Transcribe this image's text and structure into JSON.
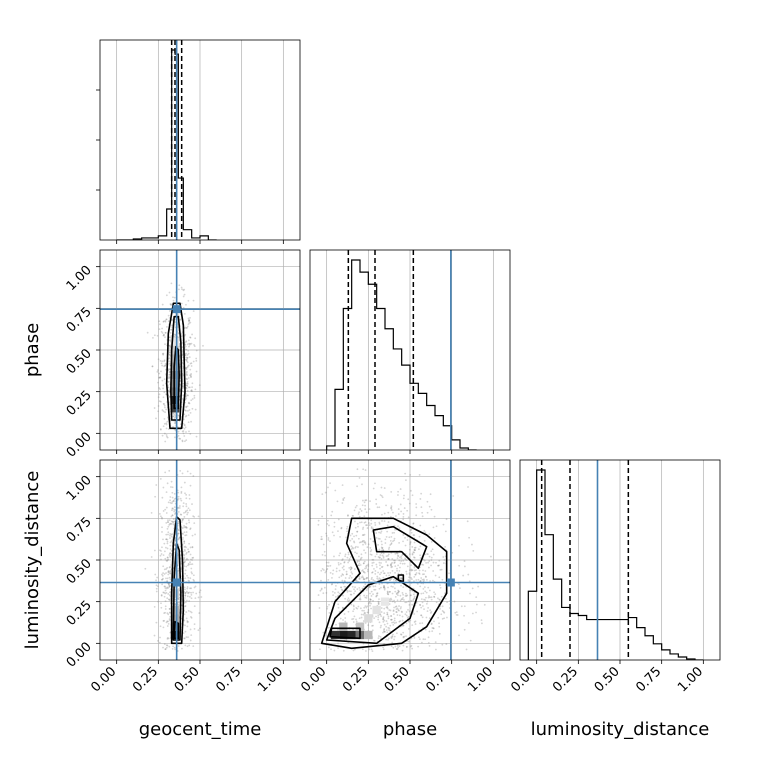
{
  "chart_data": {
    "type": "corner",
    "parameters": [
      "geocent_time",
      "phase",
      "luminosity_distance"
    ],
    "truth": [
      0.36,
      0.745,
      0.365
    ],
    "axis_range": [
      -0.1,
      1.1
    ],
    "ticks": [
      0.0,
      0.25,
      0.5,
      0.75,
      1.0
    ],
    "tick_labels": [
      "0.00",
      "0.25",
      "0.50",
      "0.75",
      "1.00"
    ],
    "quantiles": {
      "geocent_time": [
        0.33,
        0.35,
        0.39
      ],
      "phase": [
        0.13,
        0.29,
        0.52
      ],
      "luminosity_distance": [
        0.03,
        0.2,
        0.55
      ]
    },
    "histograms": {
      "geocent_time": {
        "bin_edges": [
          0.0,
          0.05,
          0.1,
          0.15,
          0.2,
          0.25,
          0.3,
          0.33,
          0.35,
          0.37,
          0.4,
          0.45,
          0.5,
          0.55,
          0.6
        ],
        "counts": [
          0.0,
          0.0,
          0.005,
          0.01,
          0.01,
          0.02,
          0.15,
          0.92,
          0.9,
          0.3,
          0.05,
          0.01,
          0.02,
          0.0
        ]
      },
      "phase": {
        "bin_edges": [
          0.0,
          0.05,
          0.1,
          0.15,
          0.2,
          0.25,
          0.3,
          0.35,
          0.4,
          0.45,
          0.5,
          0.55,
          0.6,
          0.65,
          0.7,
          0.75,
          0.8,
          0.85,
          0.9
        ],
        "counts": [
          0.02,
          0.3,
          0.7,
          0.94,
          0.88,
          0.82,
          0.7,
          0.6,
          0.5,
          0.42,
          0.33,
          0.28,
          0.22,
          0.17,
          0.12,
          0.05,
          0.01,
          0.0
        ]
      },
      "luminosity_distance": {
        "bin_edges": [
          -0.05,
          0.0,
          0.05,
          0.1,
          0.15,
          0.2,
          0.25,
          0.3,
          0.35,
          0.4,
          0.45,
          0.5,
          0.55,
          0.6,
          0.65,
          0.7,
          0.75,
          0.8,
          0.85,
          0.9,
          0.95,
          1.0
        ],
        "counts": [
          0.34,
          0.94,
          0.62,
          0.4,
          0.26,
          0.23,
          0.22,
          0.2,
          0.2,
          0.2,
          0.2,
          0.2,
          0.21,
          0.16,
          0.12,
          0.08,
          0.05,
          0.03,
          0.015,
          0.005,
          0.0
        ]
      }
    },
    "contours": {
      "phase_vs_geocent_time": [
        [
          [
            0.32,
            0.03
          ],
          [
            0.39,
            0.03
          ],
          [
            0.41,
            0.25
          ],
          [
            0.4,
            0.65
          ],
          [
            0.38,
            0.78
          ],
          [
            0.34,
            0.78
          ],
          [
            0.31,
            0.6
          ],
          [
            0.3,
            0.3
          ]
        ],
        [
          [
            0.33,
            0.08
          ],
          [
            0.38,
            0.08
          ],
          [
            0.39,
            0.3
          ],
          [
            0.385,
            0.55
          ],
          [
            0.37,
            0.7
          ],
          [
            0.345,
            0.7
          ],
          [
            0.33,
            0.5
          ],
          [
            0.325,
            0.25
          ]
        ],
        [
          [
            0.345,
            0.15
          ],
          [
            0.37,
            0.15
          ],
          [
            0.375,
            0.35
          ],
          [
            0.37,
            0.5
          ],
          [
            0.355,
            0.52
          ],
          [
            0.345,
            0.4
          ]
        ]
      ],
      "luminosity_distance_vs_geocent_time": [
        [
          [
            0.33,
            0.0
          ],
          [
            0.39,
            0.0
          ],
          [
            0.4,
            0.2
          ],
          [
            0.395,
            0.5
          ],
          [
            0.38,
            0.74
          ],
          [
            0.36,
            0.76
          ],
          [
            0.34,
            0.6
          ],
          [
            0.33,
            0.3
          ]
        ],
        [
          [
            0.34,
            0.02
          ],
          [
            0.38,
            0.02
          ],
          [
            0.385,
            0.3
          ],
          [
            0.375,
            0.56
          ],
          [
            0.36,
            0.6
          ],
          [
            0.345,
            0.4
          ]
        ],
        [
          [
            0.345,
            0.03
          ],
          [
            0.37,
            0.03
          ],
          [
            0.37,
            0.12
          ],
          [
            0.35,
            0.13
          ]
        ]
      ],
      "luminosity_distance_vs_phase": [
        [
          [
            -0.03,
            0.0
          ],
          [
            0.15,
            -0.03
          ],
          [
            0.45,
            0.0
          ],
          [
            0.6,
            0.1
          ],
          [
            0.72,
            0.3
          ],
          [
            0.72,
            0.55
          ],
          [
            0.6,
            0.65
          ],
          [
            0.4,
            0.75
          ],
          [
            0.15,
            0.75
          ],
          [
            0.12,
            0.6
          ],
          [
            0.2,
            0.42
          ],
          [
            0.05,
            0.25
          ]
        ],
        [
          [
            0.0,
            0.02
          ],
          [
            0.3,
            0.0
          ],
          [
            0.5,
            0.15
          ],
          [
            0.55,
            0.3
          ],
          [
            0.4,
            0.4
          ],
          [
            0.25,
            0.35
          ],
          [
            0.05,
            0.15
          ]
        ],
        [
          [
            0.3,
            0.55
          ],
          [
            0.45,
            0.55
          ],
          [
            0.55,
            0.45
          ],
          [
            0.6,
            0.58
          ],
          [
            0.4,
            0.7
          ],
          [
            0.28,
            0.68
          ]
        ],
        [
          [
            0.02,
            0.04
          ],
          [
            0.2,
            0.03
          ],
          [
            0.2,
            0.09
          ],
          [
            0.03,
            0.09
          ]
        ],
        [
          [
            0.43,
            0.41
          ],
          [
            0.46,
            0.41
          ],
          [
            0.46,
            0.37
          ],
          [
            0.43,
            0.38
          ]
        ]
      ]
    },
    "density_cells": {
      "phase_vs_geocent_time": [
        [
          0.35,
          0.15,
          0.8
        ],
        [
          0.35,
          0.2,
          0.95
        ],
        [
          0.35,
          0.25,
          0.6
        ],
        [
          0.35,
          0.3,
          0.5
        ],
        [
          0.35,
          0.35,
          0.55
        ],
        [
          0.35,
          0.4,
          0.4
        ],
        [
          0.35,
          0.45,
          0.3
        ],
        [
          0.35,
          0.5,
          0.2
        ],
        [
          0.35,
          0.55,
          0.1
        ]
      ],
      "luminosity_distance_vs_geocent_time": [
        [
          0.35,
          0.05,
          0.95
        ],
        [
          0.35,
          0.1,
          0.5
        ],
        [
          0.35,
          0.15,
          0.35
        ],
        [
          0.35,
          0.2,
          0.3
        ],
        [
          0.35,
          0.3,
          0.2
        ],
        [
          0.35,
          0.4,
          0.15
        ],
        [
          0.35,
          0.5,
          0.1
        ]
      ],
      "luminosity_distance_vs_phase": [
        [
          0.05,
          0.05,
          0.85
        ],
        [
          0.1,
          0.05,
          0.95
        ],
        [
          0.15,
          0.05,
          0.9
        ],
        [
          0.2,
          0.05,
          0.6
        ],
        [
          0.25,
          0.05,
          0.3
        ],
        [
          0.1,
          0.1,
          0.3
        ],
        [
          0.2,
          0.1,
          0.25
        ],
        [
          0.25,
          0.15,
          0.15
        ],
        [
          0.3,
          0.2,
          0.12
        ],
        [
          0.35,
          0.25,
          0.1
        ]
      ]
    },
    "scatter_clouds": {
      "phase_vs_geocent_time": {
        "x_center": 0.36,
        "x_spread": 0.05,
        "y_center": 0.35,
        "y_spread": 0.22,
        "count": 900
      },
      "luminosity_distance_vs_geocent_time": {
        "x_center": 0.36,
        "x_spread": 0.05,
        "y_center": 0.4,
        "y_spread": 0.3,
        "count": 900
      },
      "luminosity_distance_vs_phase": {
        "x_center": 0.33,
        "x_spread": 0.22,
        "y_center": 0.35,
        "y_spread": 0.28,
        "count": 1500
      }
    },
    "grid": true,
    "colors": {
      "truth": "#4682b4",
      "lines": "#000000",
      "grid": "#b0b0b0",
      "points": "#888888"
    }
  }
}
